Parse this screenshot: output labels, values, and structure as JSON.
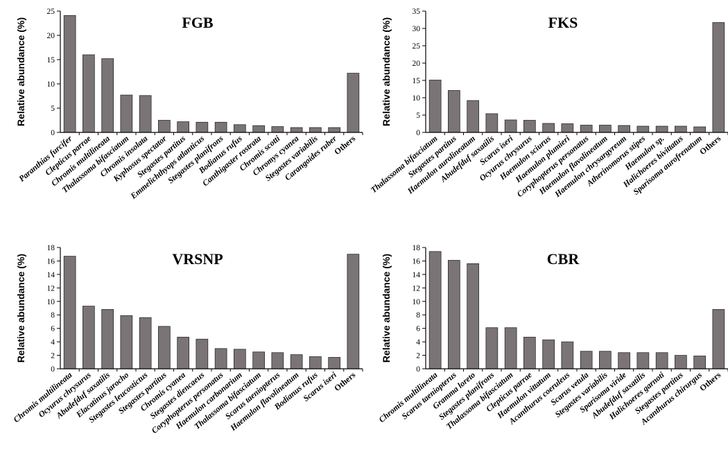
{
  "chart_data": [
    {
      "type": "bar",
      "title": "FGB",
      "ylabel": "Relative abundance (%)",
      "ylim": [
        0,
        25
      ],
      "yticks": [
        0,
        5,
        10,
        15,
        20,
        25
      ],
      "categories": [
        "Paranthias furcifer",
        "Clepticus parrae",
        "Chromis multilineata",
        "Thalassoma bifasciatum",
        "Chromis insolata",
        "Kyphosus spectator",
        "Stegastes partitus",
        "Emmelichthyops atlanticus",
        "Stegastes planifrons",
        "Bodianus rufus",
        "Canthigaster rostrata",
        "Chromis scotti",
        "Chromys cyanea",
        "Stegastes variabilis",
        "Carangoides ruber",
        "Others"
      ],
      "values": [
        24.1,
        16.0,
        15.2,
        7.7,
        7.6,
        2.5,
        2.2,
        2.1,
        2.1,
        1.6,
        1.4,
        1.2,
        1.0,
        1.0,
        1.0,
        12.2
      ]
    },
    {
      "type": "bar",
      "title": "FKS",
      "ylabel": "Relative abundance (%)",
      "ylim": [
        0,
        35
      ],
      "yticks": [
        0,
        5,
        10,
        15,
        20,
        25,
        30,
        35
      ],
      "categories": [
        "Thalassoma bifasciatum",
        "Stegastes partitus",
        "Haemulon aurolineatum",
        "Abudefduf saxatilis",
        "Scarus iseri",
        "Ocyurus chrysurus",
        "Haemulon sciurus",
        "Haemulon plumieri",
        "Coryphopterus personatus",
        "Haemulon flavolineatum",
        "Haemulon chrysargyreum",
        "Atherinomorus stipes",
        "Haemulon sp.",
        "Halichoeres bivittatus",
        "Sparisoma aurofrenatum",
        "Others"
      ],
      "values": [
        15.1,
        12.1,
        9.2,
        5.4,
        3.6,
        3.5,
        2.6,
        2.5,
        2.1,
        2.1,
        2.0,
        1.8,
        1.8,
        1.8,
        1.6,
        31.7
      ]
    },
    {
      "type": "bar",
      "title": "VRSNP",
      "ylabel": "Relative abundance (%)",
      "ylim": [
        0,
        18
      ],
      "yticks": [
        0,
        2,
        4,
        6,
        8,
        10,
        12,
        14,
        16,
        18
      ],
      "categories": [
        "Chromis multilineata",
        "Ocyurus chrysurus",
        "Abudefduf saxatilis",
        "Elacatinus jarocho",
        "Stegastes leucostictus",
        "Stegastes partitus",
        "Chromis cyanea",
        "Stegastes diencaeus",
        "Coryphopterus personatus",
        "Haemulon carbonarium",
        "Thalassoma bifasciatum",
        "Scarus taeniopterus",
        "Haemulon flavolineatum",
        "Bodianus rufus",
        "Scarus iseri",
        "Others"
      ],
      "values": [
        16.7,
        9.3,
        8.8,
        7.9,
        7.6,
        6.3,
        4.7,
        4.4,
        3.0,
        2.9,
        2.5,
        2.4,
        2.1,
        1.8,
        1.7,
        17.0
      ]
    },
    {
      "type": "bar",
      "title": "CBR",
      "ylabel": "Relative abundance (%)",
      "ylim": [
        0,
        18
      ],
      "yticks": [
        0,
        2,
        4,
        6,
        8,
        10,
        12,
        14,
        16,
        18
      ],
      "categories": [
        "Chromis multilineata",
        "Scarus taeniopterus",
        "Gramma loreto",
        "Stegastes planifrons",
        "Thalassoma bifasciatum",
        "Clepticus parrae",
        "Haemulon vittatum",
        "Acanthurus coeruleus",
        "Scarus vetula",
        "Stegastes variabilis",
        "Sparisoma viride",
        "Abudefduf saxatilis",
        "Halichoeres garnoti",
        "Stegastes partitus",
        "Acanthurus chirurgus",
        "Others"
      ],
      "values": [
        17.4,
        16.1,
        15.6,
        6.1,
        6.1,
        4.7,
        4.3,
        4.0,
        2.6,
        2.6,
        2.4,
        2.4,
        2.4,
        2.0,
        1.9,
        8.8
      ]
    }
  ]
}
